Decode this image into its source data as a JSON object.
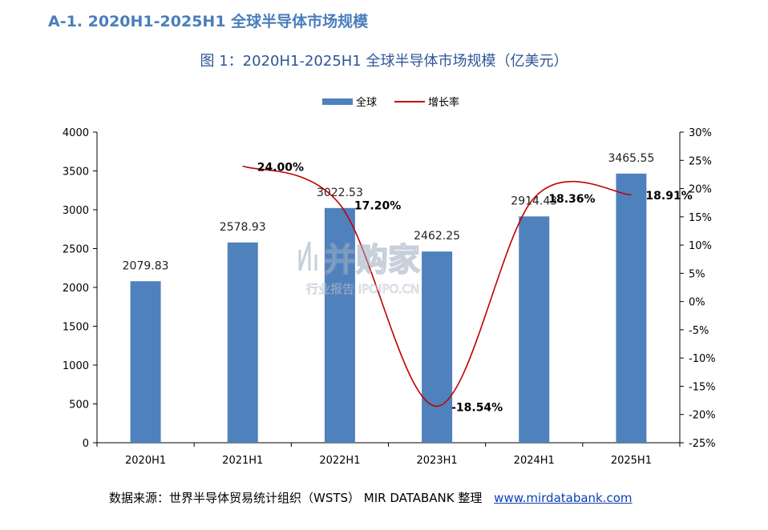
{
  "section_title": "A-1. 2020H1-2025H1 全球半导体市场规模",
  "chart_title": "图 1：2020H1-2025H1 全球半导体市场规模（亿美元）",
  "source": {
    "text": "数据来源：世界半导体贸易统计组织（WSTS）  MIR DATABANK 整理",
    "link": "www.mirdatabank.com"
  },
  "watermark": {
    "brand": "并购家",
    "sub": "行业报告 IPOIPO.CN"
  },
  "colors": {
    "bar": "#4f81bd",
    "line": "#c00000",
    "axis": "#000000",
    "title": "#2f5597"
  },
  "chart_data": {
    "type": "bar",
    "title": "图 1：2020H1-2025H1 全球半导体市场规模（亿美元）",
    "categories": [
      "2020H1",
      "2021H1",
      "2022H1",
      "2023H1",
      "2024H1",
      "2025H1"
    ],
    "series": [
      {
        "name": "全球",
        "type": "bar",
        "axis": "left",
        "values": [
          2079.83,
          2578.93,
          3022.53,
          2462.25,
          2914.43,
          3465.55
        ],
        "labels": [
          "2079.83",
          "2578.93",
          "3022.53",
          "2462.25",
          "2914.43",
          "3465.55"
        ]
      },
      {
        "name": "增长率",
        "type": "line",
        "axis": "right",
        "smooth": true,
        "values": [
          null,
          24.0,
          17.2,
          -18.54,
          18.36,
          18.91
        ],
        "labels": [
          null,
          "24.00%",
          "17.20%",
          "-18.54%",
          "18.36%",
          "18.91%"
        ]
      }
    ],
    "y_left": {
      "min": 0,
      "max": 4000,
      "step": 500
    },
    "y_right": {
      "min": -25,
      "max": 30,
      "step": 5,
      "unit": "%"
    },
    "legend": {
      "position": "top-center"
    },
    "grid": false
  }
}
